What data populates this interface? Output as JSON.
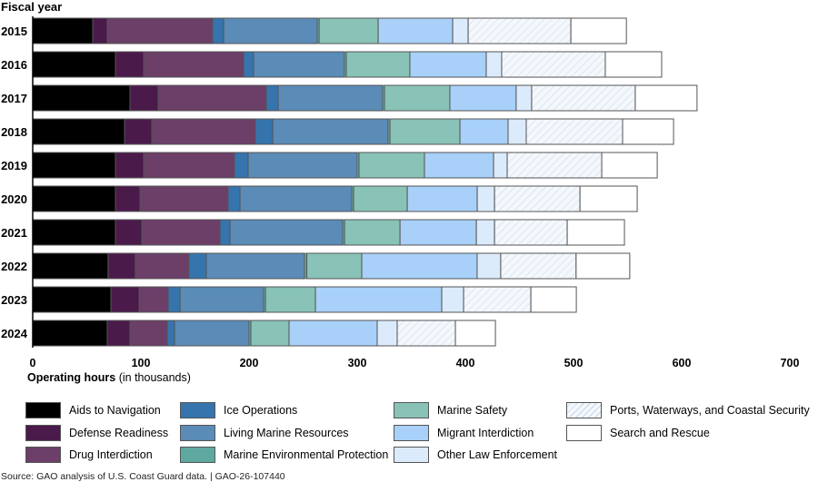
{
  "chart_data": {
    "type": "bar",
    "orientation": "horizontal",
    "stacked": true,
    "title": "",
    "ylabel": "Fiscal year",
    "xlabel_bold": "Operating hours",
    "xlabel_rest": " (in thousands)",
    "xlim": [
      0,
      700
    ],
    "xticks": [
      0,
      100,
      200,
      300,
      400,
      500,
      600,
      700
    ],
    "grid": false,
    "legend_position": "bottom",
    "categories": [
      "2015",
      "2016",
      "2017",
      "2018",
      "2019",
      "2020",
      "2021",
      "2022",
      "2023",
      "2024"
    ],
    "series": [
      {
        "name": "Aids to Navigation",
        "color": "#000000",
        "values": [
          55.5,
          76.5,
          89.9,
          84.9,
          76.5,
          76.5,
          76.5,
          69.7,
          72.3,
          68.9
        ]
      },
      {
        "name": "Defense Readiness",
        "color": "#4a1a4a",
        "values": [
          13.4,
          26.1,
          26.1,
          25.2,
          26.1,
          22.7,
          24.4,
          25.2,
          26.1,
          21.0
        ]
      },
      {
        "name": "Drug Interdiction",
        "color": "#6b3f68",
        "values": [
          97.5,
          92.4,
          100.0,
          95.8,
          84.0,
          81.5,
          72.3,
          49.6,
          26.9,
          34.5
        ]
      },
      {
        "name": "Ice Operations",
        "color": "#3674ad",
        "values": [
          10.1,
          9.2,
          10.9,
          16.0,
          12.6,
          10.9,
          9.2,
          16.0,
          10.9,
          6.7
        ]
      },
      {
        "name": "Living Marine Resources",
        "color": "#5b8bb7",
        "values": [
          86.6,
          84.0,
          96.6,
          106.7,
          100.8,
          103.4,
          104.2,
          90.8,
          77.3,
          68.9
        ]
      },
      {
        "name": "Marine Environmental Protection",
        "color": "#5fa8a0",
        "values": [
          1.7,
          1.7,
          1.7,
          1.7,
          1.7,
          1.7,
          1.7,
          2.1,
          1.7,
          1.7
        ]
      },
      {
        "name": "Marine Safety",
        "color": "#89c2b7",
        "values": [
          54.6,
          58.8,
          60.5,
          64.7,
          60.5,
          49.6,
          51.3,
          50.8,
          46.2,
          35.3
        ]
      },
      {
        "name": "Migrant Interdiction",
        "color": "#a8d0f8",
        "values": [
          68.9,
          70.6,
          61.3,
          44.5,
          63.9,
          64.7,
          70.6,
          106.7,
          116.8,
          81.5
        ]
      },
      {
        "name": "Other Law Enforcement",
        "color": "#dcebfb",
        "values": [
          14.3,
          14.3,
          14.3,
          16.8,
          12.6,
          16.0,
          16.8,
          21.8,
          20.2,
          18.5
        ]
      },
      {
        "name": "Ports, Waterways, and Coastal Security",
        "color": "hatch",
        "values": [
          95.0,
          95.8,
          95.8,
          89.1,
          87.4,
          79.0,
          67.2,
          69.7,
          62.2,
          53.8
        ]
      },
      {
        "name": "Search and Rescue",
        "color": "#ffffff",
        "values": [
          51.3,
          52.1,
          57.1,
          47.1,
          51.3,
          52.9,
          52.9,
          49.6,
          42.0,
          37.0
        ]
      }
    ],
    "legend_order": [
      [
        "Aids to Navigation",
        "Defense Readiness",
        "Drug Interdiction"
      ],
      [
        "Ice Operations",
        "Living Marine Resources",
        "Marine Environmental Protection"
      ],
      [
        "Marine Safety",
        "Migrant Interdiction",
        "Other Law Enforcement"
      ],
      [
        "Ports, Waterways, and Coastal Security",
        "Search and Rescue"
      ]
    ]
  },
  "source_note": "Source: GAO analysis of U.S. Coast Guard data.  |  GAO-26-107440"
}
